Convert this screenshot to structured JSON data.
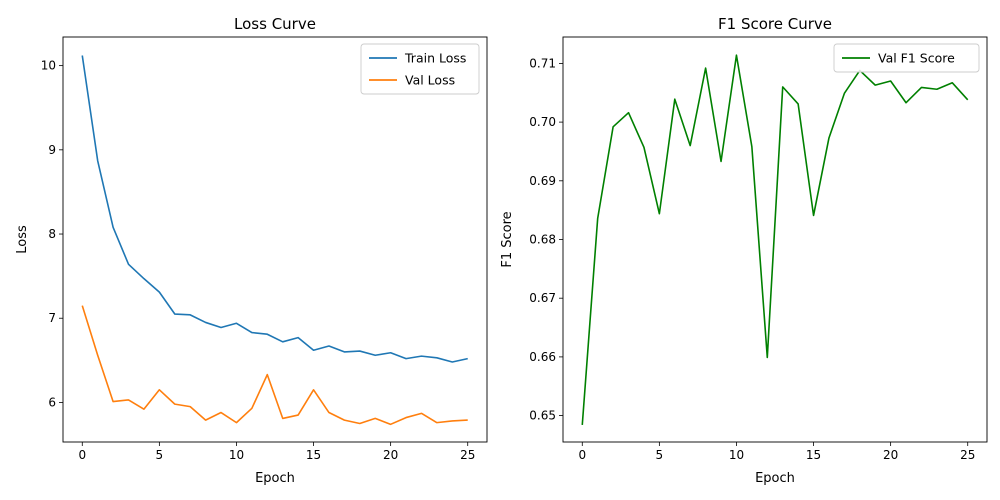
{
  "chart_data": [
    {
      "type": "line",
      "title": "Loss Curve",
      "xlabel": "Epoch",
      "ylabel": "Loss",
      "xlim": [
        -1.25,
        26.25
      ],
      "ylim": [
        5.53,
        10.34
      ],
      "xticks": [
        0,
        5,
        10,
        15,
        20,
        25
      ],
      "yticks": [
        6,
        7,
        8,
        9,
        10
      ],
      "legend": "top-right",
      "grid": false,
      "x": [
        0,
        1,
        2,
        3,
        4,
        5,
        6,
        7,
        8,
        9,
        10,
        11,
        12,
        13,
        14,
        15,
        16,
        17,
        18,
        19,
        20,
        21,
        22,
        23,
        24,
        25
      ],
      "series": [
        {
          "name": "Train Loss",
          "color": "#1f77b4",
          "values": [
            10.12,
            8.87,
            8.08,
            7.64,
            7.47,
            7.31,
            7.05,
            7.04,
            6.95,
            6.89,
            6.94,
            6.83,
            6.81,
            6.72,
            6.77,
            6.62,
            6.67,
            6.6,
            6.61,
            6.56,
            6.59,
            6.52,
            6.55,
            6.53,
            6.48,
            6.52
          ]
        },
        {
          "name": "Val Loss",
          "color": "#ff7f0e",
          "values": [
            7.15,
            6.56,
            6.01,
            6.03,
            5.92,
            6.15,
            5.98,
            5.95,
            5.79,
            5.88,
            5.76,
            5.93,
            6.33,
            5.81,
            5.85,
            6.15,
            5.88,
            5.79,
            5.75,
            5.81,
            5.74,
            5.82,
            5.87,
            5.76,
            5.78,
            5.79
          ]
        }
      ]
    },
    {
      "type": "line",
      "title": "F1 Score Curve",
      "xlabel": "Epoch",
      "ylabel": "F1 Score",
      "xlim": [
        -1.25,
        26.25
      ],
      "ylim": [
        0.6455,
        0.7145
      ],
      "xticks": [
        0,
        5,
        10,
        15,
        20,
        25
      ],
      "yticks": [
        0.65,
        0.66,
        0.67,
        0.68,
        0.69,
        0.7,
        0.71
      ],
      "ytick_labels": [
        "0.65",
        "0.66",
        "0.67",
        "0.68",
        "0.69",
        "0.70",
        "0.71"
      ],
      "legend": "top-right",
      "grid": false,
      "x": [
        0,
        1,
        2,
        3,
        4,
        5,
        6,
        7,
        8,
        9,
        10,
        11,
        12,
        13,
        14,
        15,
        16,
        17,
        18,
        19,
        20,
        21,
        22,
        23,
        24,
        25
      ],
      "series": [
        {
          "name": "Val F1 Score",
          "color": "#008000",
          "values": [
            0.6484,
            0.6836,
            0.6992,
            0.7016,
            0.6957,
            0.6844,
            0.7039,
            0.696,
            0.7092,
            0.6933,
            0.7114,
            0.6958,
            0.6599,
            0.706,
            0.7031,
            0.6841,
            0.6973,
            0.7049,
            0.7088,
            0.7063,
            0.707,
            0.7033,
            0.7059,
            0.7056,
            0.7067,
            0.7038
          ]
        }
      ]
    }
  ]
}
